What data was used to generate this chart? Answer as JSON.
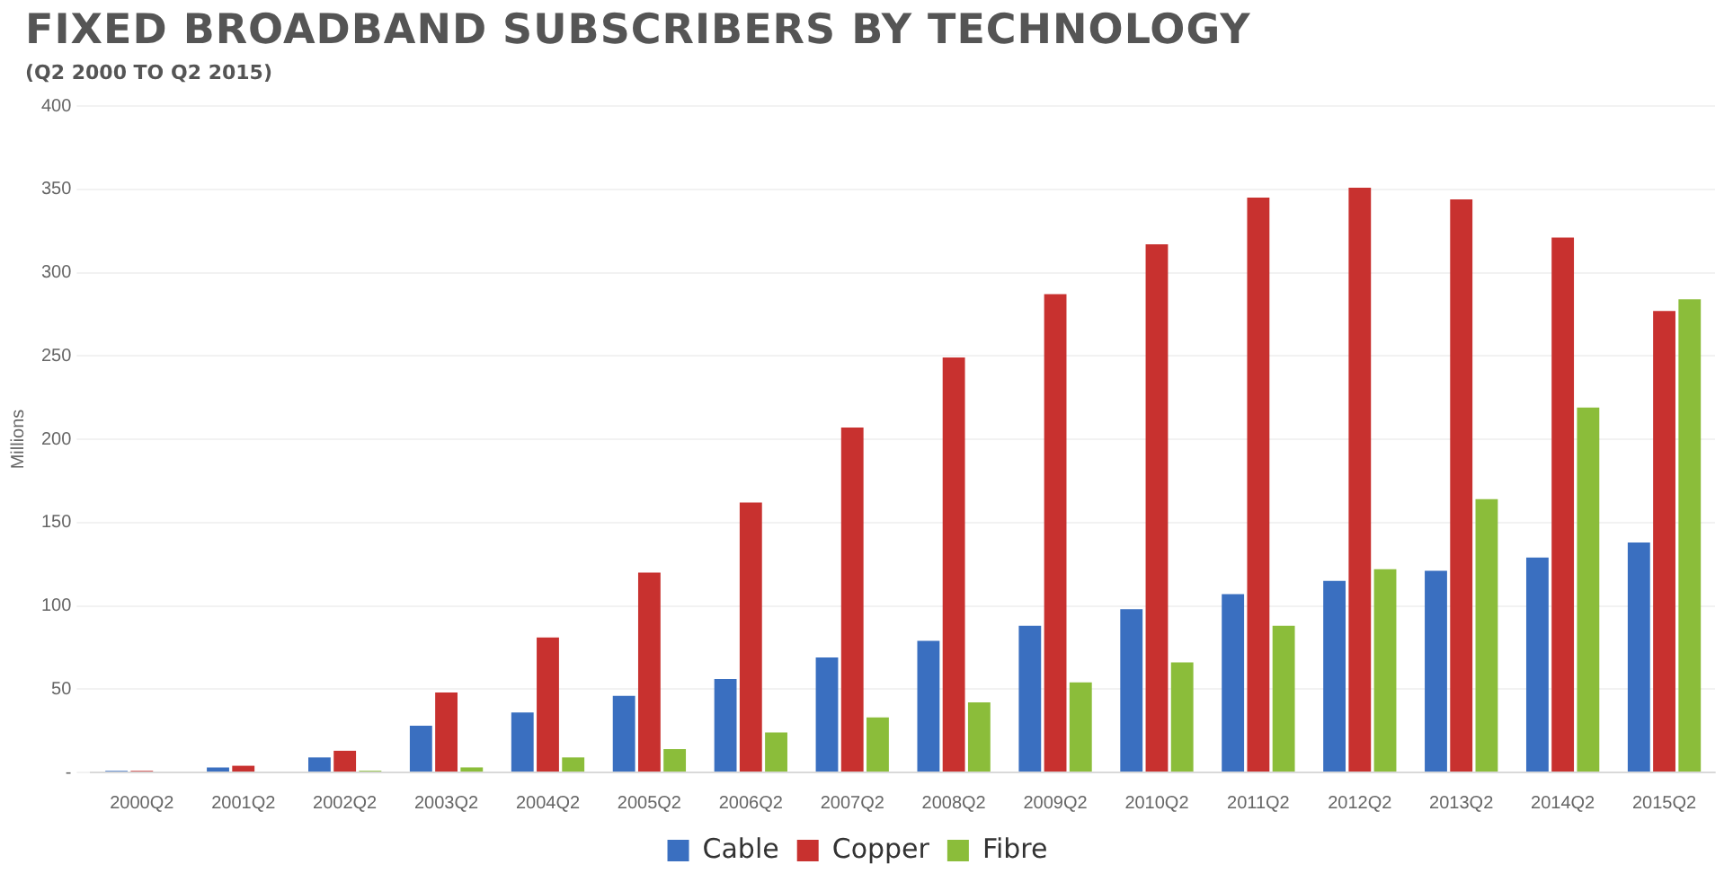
{
  "chart_data": {
    "type": "bar",
    "title": "FIXED BROADBAND SUBSCRIBERS BY TECHNOLOGY",
    "subtitle": "(Q2 2000 TO Q2 2015)",
    "ylabel": "Millions",
    "categories": [
      "2000Q2",
      "2001Q2",
      "2002Q2",
      "2003Q2",
      "2004Q2",
      "2005Q2",
      "2006Q2",
      "2007Q2",
      "2008Q2",
      "2009Q2",
      "2010Q2",
      "2011Q2",
      "2012Q2",
      "2013Q2",
      "2014Q2",
      "2015Q2"
    ],
    "series": [
      {
        "name": "Cable",
        "color": "#3a6fc0",
        "values": [
          1,
          3,
          9,
          28,
          36,
          46,
          56,
          69,
          79,
          88,
          98,
          107,
          115,
          121,
          129,
          138
        ]
      },
      {
        "name": "Copper",
        "color": "#c8312f",
        "values": [
          1,
          4,
          13,
          48,
          81,
          120,
          162,
          207,
          249,
          287,
          317,
          345,
          351,
          344,
          321,
          277
        ]
      },
      {
        "name": "Fibre",
        "color": "#8bbd3a",
        "values": [
          0,
          0,
          1,
          3,
          9,
          14,
          24,
          33,
          42,
          54,
          66,
          88,
          122,
          164,
          219,
          284
        ]
      }
    ],
    "ylim": [
      0,
      400
    ],
    "yticks": [
      {
        "value": 0,
        "label": "-"
      },
      50,
      100,
      150,
      200,
      250,
      300,
      350,
      400
    ],
    "grid": "y",
    "legend": "bottom"
  }
}
